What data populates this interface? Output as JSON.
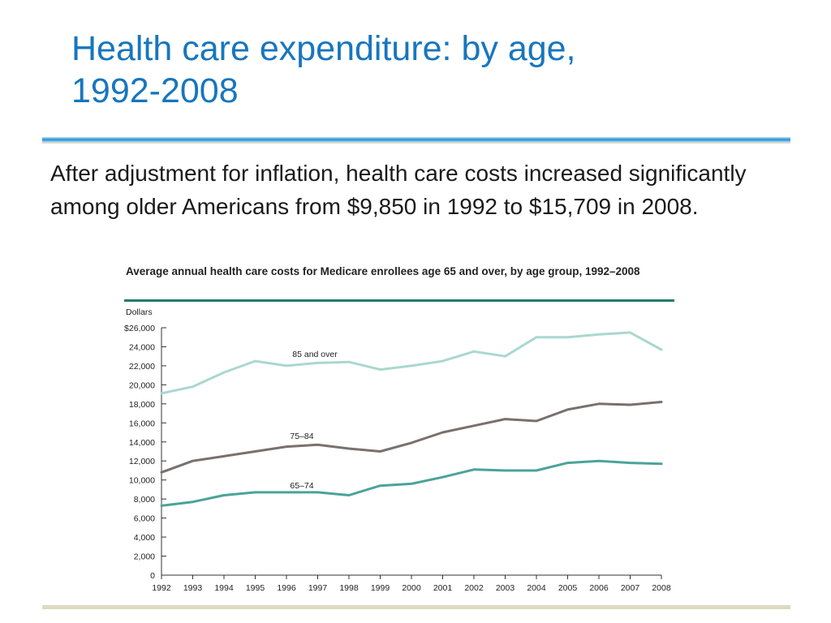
{
  "slide": {
    "title_line1": "Health care expenditure: by age,",
    "title_line2": "1992-2008",
    "body": "After adjustment for inflation, health care costs increased significantly among older Americans from $9,850 in 1992 to $15,709 in 2008."
  },
  "chart_data": {
    "type": "line",
    "title": "Average annual health care costs for Medicare enrollees age 65 and over, by age group, 1992–2008",
    "ylabel": "Dollars",
    "xlabel": "",
    "ylim": [
      0,
      26000
    ],
    "yticks": [
      0,
      2000,
      4000,
      6000,
      8000,
      10000,
      12000,
      14000,
      16000,
      18000,
      20000,
      22000,
      24000,
      26000
    ],
    "ytick_labels": [
      "0",
      "2,000",
      "4,000",
      "6,000",
      "8,000",
      "10,000",
      "12,000",
      "14,000",
      "16,000",
      "18,000",
      "20,000",
      "22,000",
      "24,000",
      "$26,000"
    ],
    "x": [
      "1992",
      "1993",
      "1994",
      "1995",
      "1996",
      "1997",
      "1998",
      "1999",
      "2000",
      "2001",
      "2002",
      "2003",
      "2004",
      "2005",
      "2006",
      "2007",
      "2008"
    ],
    "grid": false,
    "series": [
      {
        "name": "85 and over",
        "color": "#a9d8cf",
        "values": [
          19100,
          19800,
          21300,
          22500,
          22000,
          22300,
          22400,
          21600,
          22000,
          22500,
          23500,
          23000,
          25000,
          25000,
          25300,
          25500,
          23700
        ]
      },
      {
        "name": "75–84",
        "color": "#7a706c",
        "values": [
          10800,
          12000,
          12500,
          13000,
          13500,
          13700,
          13300,
          13000,
          13900,
          15000,
          15700,
          16400,
          16200,
          17400,
          18000,
          17900,
          18200
        ]
      },
      {
        "name": "65–74",
        "color": "#4aa39a",
        "values": [
          7300,
          7700,
          8400,
          8700,
          8700,
          8700,
          8400,
          9400,
          9600,
          10300,
          11100,
          11000,
          11000,
          11800,
          12000,
          11800,
          11700
        ]
      }
    ]
  }
}
